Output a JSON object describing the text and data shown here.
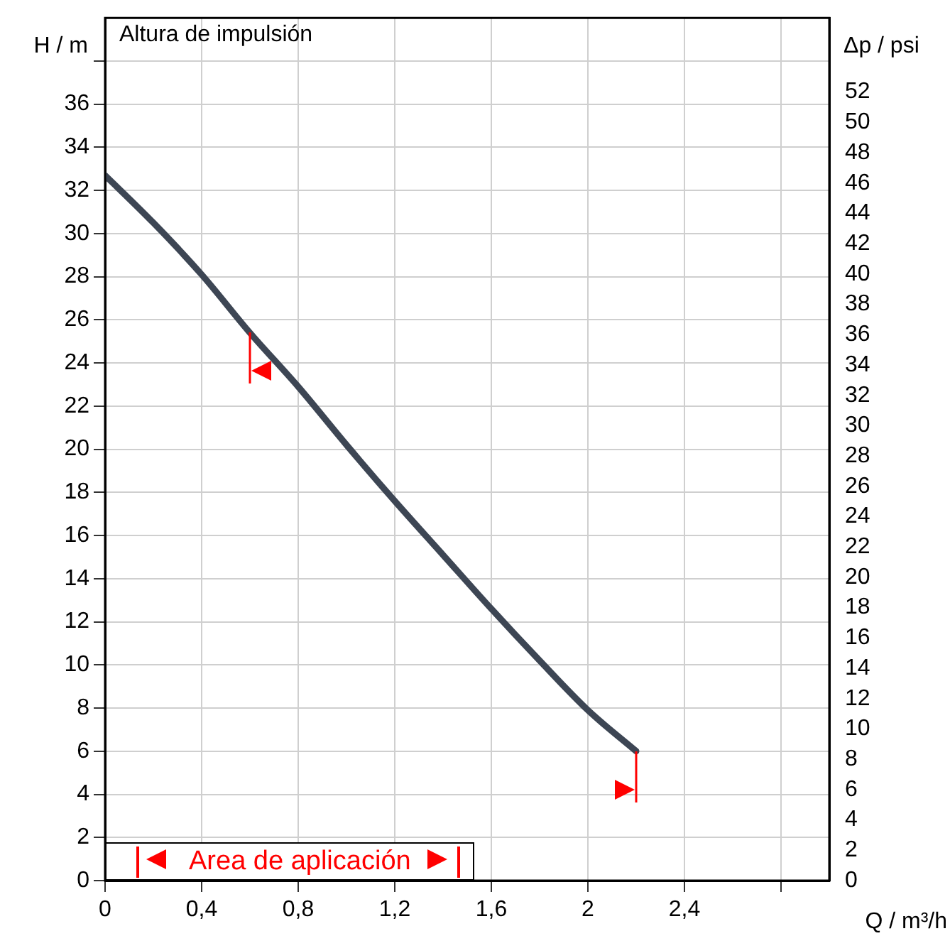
{
  "chart_data": {
    "type": "line",
    "title": "Altura de impulsión",
    "xlabel": "Q / m³/h",
    "ylabel": "H / m",
    "y2label": "Δp / psi",
    "x": [
      0,
      0.2,
      0.4,
      0.6,
      0.8,
      1.0,
      1.2,
      1.4,
      1.6,
      1.8,
      2.0,
      2.2
    ],
    "series": [
      {
        "color": "#3d4654",
        "values": [
          32.7,
          30.5,
          28.1,
          25.4,
          22.9,
          20.2,
          17.6,
          15.1,
          12.6,
          10.2,
          7.9,
          6.0
        ]
      }
    ],
    "xlim": [
      0,
      3
    ],
    "xticks": [
      0,
      {
        "value": 0.4,
        "label": "0,4"
      },
      {
        "value": 0.8,
        "label": "0,8"
      },
      {
        "value": 1.2,
        "label": "1,2"
      },
      {
        "value": 1.6,
        "label": "1,6"
      },
      2,
      {
        "value": 2.4,
        "label": "2,4"
      },
      {
        "value": 2.8,
        "label": null
      }
    ],
    "ylim": [
      0,
      40
    ],
    "yticks": [
      0,
      2,
      4,
      6,
      8,
      10,
      12,
      14,
      16,
      18,
      20,
      22,
      24,
      26,
      28,
      30,
      32,
      34,
      36,
      {
        "value": 38,
        "label": null
      }
    ],
    "y2lim": [
      0,
      56.89
    ],
    "y2ticks": [
      0,
      2,
      4,
      6,
      8,
      10,
      12,
      14,
      16,
      18,
      20,
      22,
      24,
      26,
      28,
      30,
      32,
      34,
      36,
      38,
      40,
      42,
      44,
      46,
      48,
      50,
      52
    ],
    "annotations": [
      "Area de aplicación"
    ],
    "grid": true,
    "legend": false,
    "marker": "none",
    "line_style": "solid"
  }
}
